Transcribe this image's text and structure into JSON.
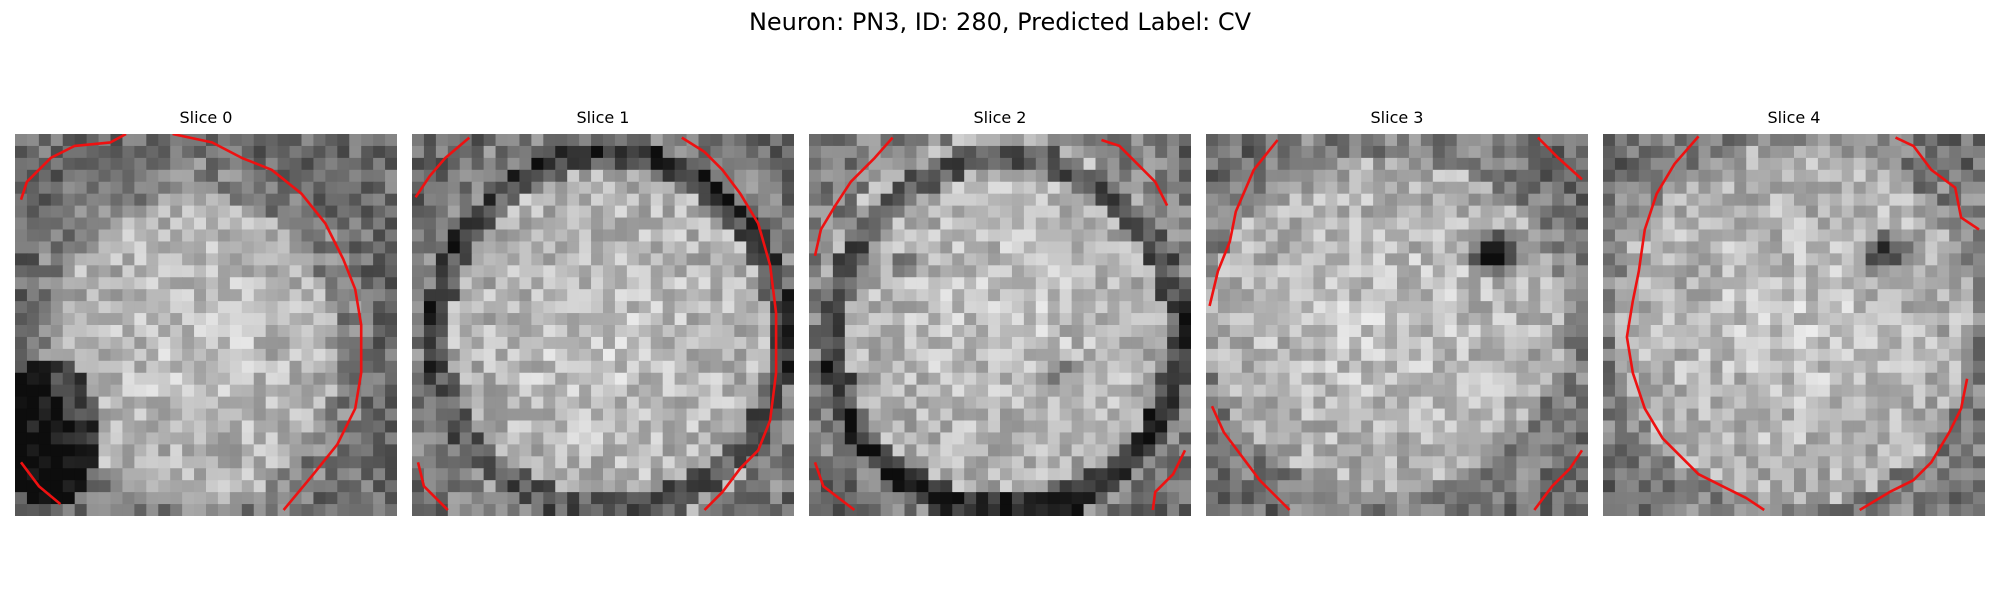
{
  "figure": {
    "title": "Neuron: PN3, ID: 280, Predicted Label: CV",
    "contour_color": "#ee1111"
  },
  "panels": [
    {
      "title": "Slice 0"
    },
    {
      "title": "Slice 1"
    },
    {
      "title": "Slice 2"
    },
    {
      "title": "Slice 3"
    },
    {
      "title": "Slice 4"
    }
  ]
}
